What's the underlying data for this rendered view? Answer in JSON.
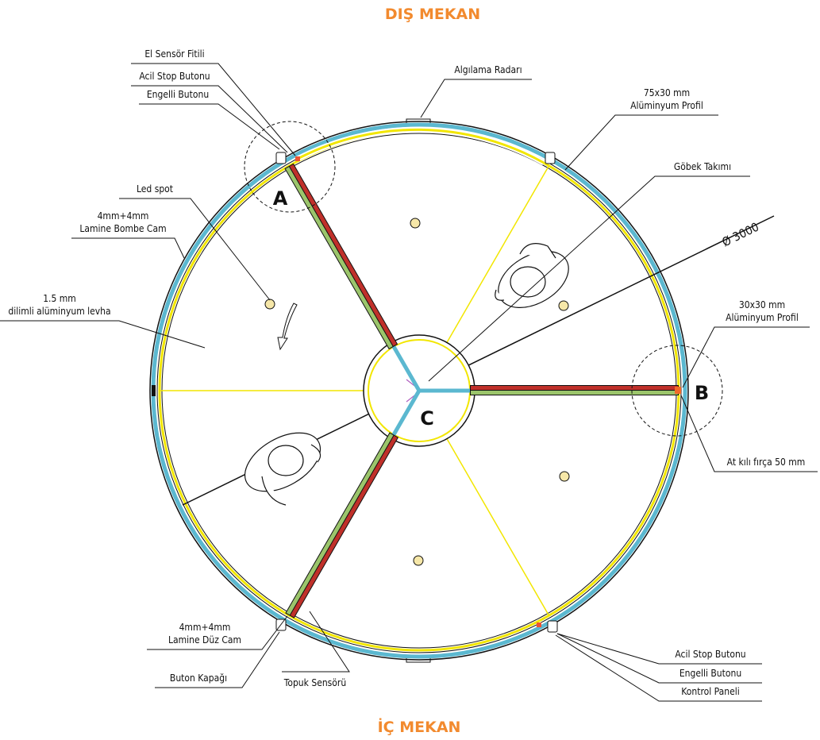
{
  "header": {
    "top": "DIŞ MEKAN",
    "bottom": "İÇ MEKAN"
  },
  "points": {
    "a": "A",
    "b": "B",
    "c": "C"
  },
  "diameter": "Ø 3000",
  "callouts": [
    {
      "lines": [
        "El Sensör Fitili"
      ]
    },
    {
      "lines": [
        "Acil Stop Butonu"
      ]
    },
    {
      "lines": [
        "Engelli Butonu"
      ]
    },
    {
      "lines": [
        "Algılama Radarı"
      ]
    },
    {
      "lines": [
        "75x30 mm",
        "Alüminyum Profil"
      ]
    },
    {
      "lines": [
        "Göbek Takımı"
      ]
    },
    {
      "lines": [
        "30x30 mm",
        "Alüminyum Profil"
      ]
    },
    {
      "lines": [
        "At kılı fırça 50 mm"
      ]
    },
    {
      "lines": [
        "Led spot"
      ]
    },
    {
      "lines": [
        "4mm+4mm",
        "Lamine Bombe Cam"
      ]
    },
    {
      "lines": [
        "1.5 mm",
        "dilimli alüminyum levha"
      ]
    },
    {
      "lines": [
        "4mm+4mm",
        "Lamine Düz Cam"
      ]
    },
    {
      "lines": [
        "Buton Kapağı"
      ]
    },
    {
      "lines": [
        "Topuk Sensörü"
      ]
    },
    {
      "lines": [
        "Acil Stop Butonu"
      ]
    },
    {
      "lines": [
        "Engelli Butonu"
      ]
    },
    {
      "lines": [
        "Kontrol Paneli"
      ]
    }
  ]
}
